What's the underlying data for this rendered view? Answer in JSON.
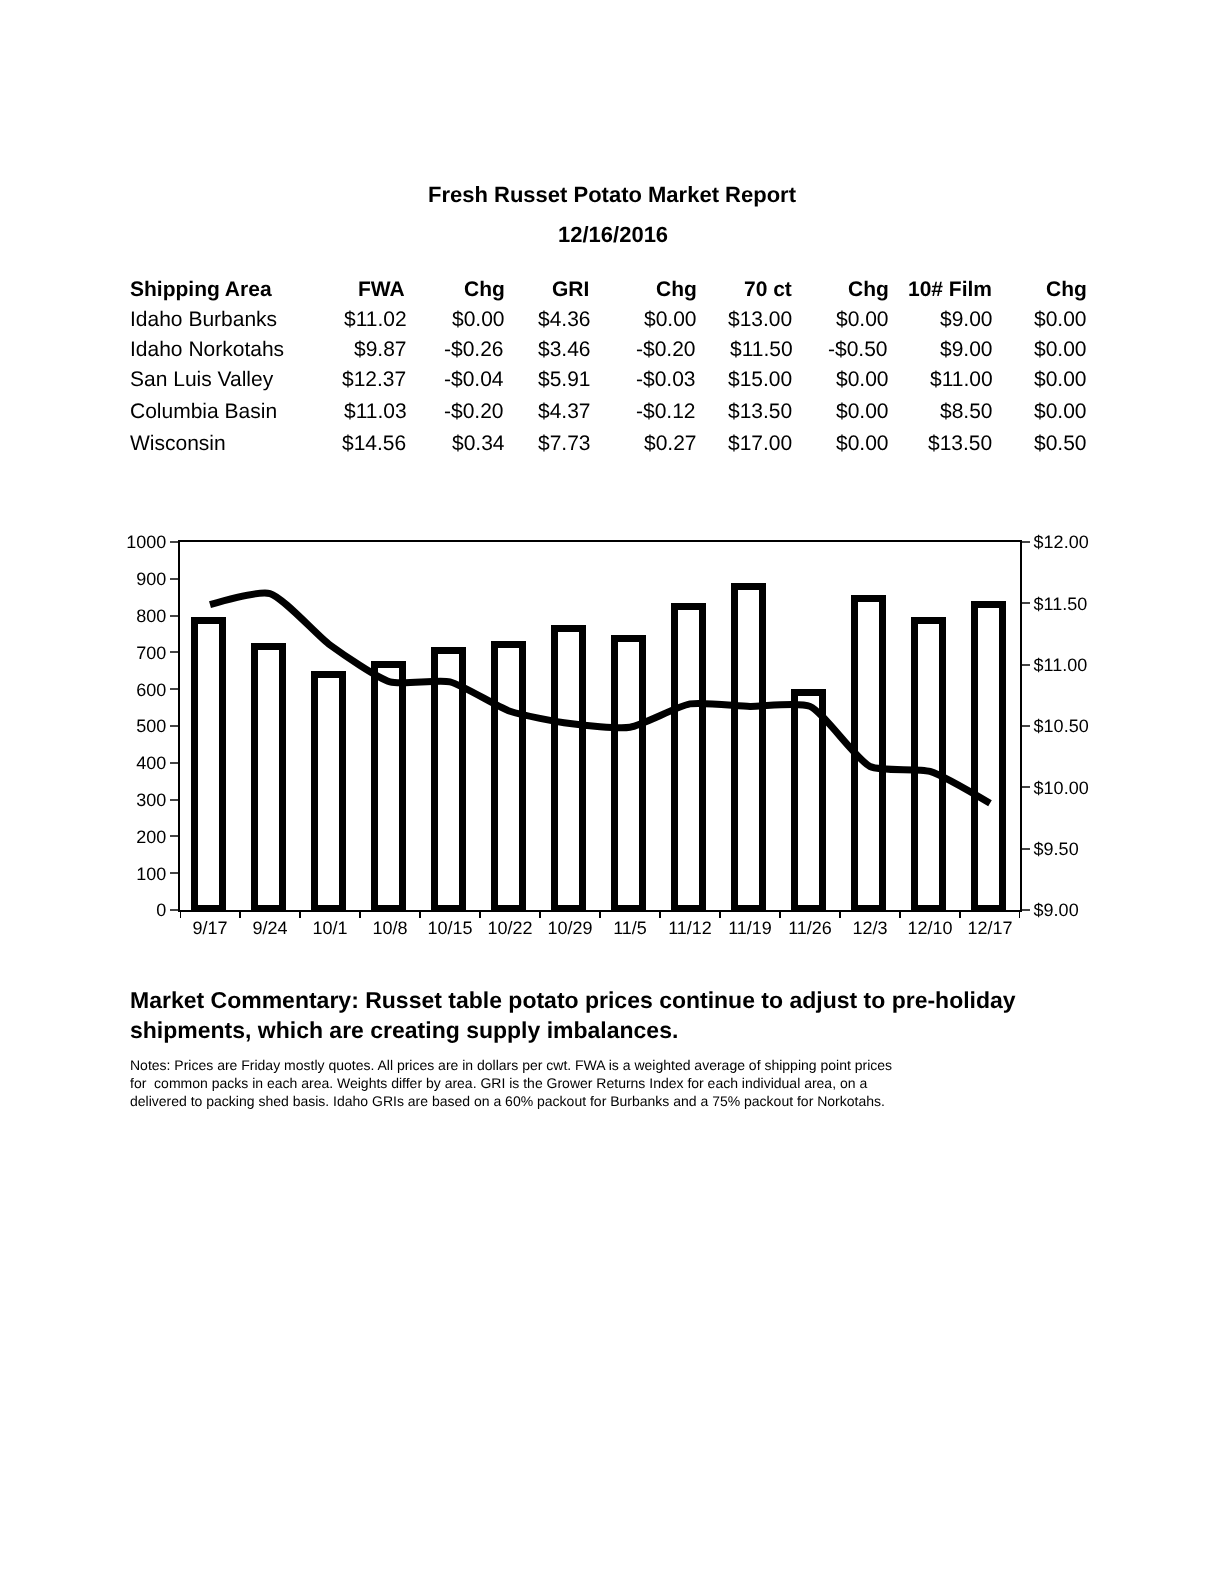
{
  "chart_data": {
    "type": "bar",
    "title": "Fresh Russet Potato Market Report",
    "subtitle": "12/16/2016",
    "categories": [
      "9/17",
      "9/24",
      "10/1",
      "10/8",
      "10/15",
      "10/22",
      "10/29",
      "11/5",
      "11/12",
      "11/19",
      "11/26",
      "12/3",
      "12/10",
      "12/17"
    ],
    "series": [
      {
        "color": "#000000",
        "values": [
          780,
          710,
          635,
          665,
          700,
          715,
          760,
          735,
          820,
          875,
          585,
          845,
          785,
          825
        ]
      },
      {
        "type": "line",
        "axis": "y2",
        "color": "#000000",
        "values": [
          11.49,
          11.58,
          11.16,
          10.86,
          10.86,
          10.62,
          10.52,
          10.49,
          10.68,
          10.66,
          10.66,
          10.17,
          10.13,
          9.87
        ]
      }
    ],
    "ylim": [
      0,
      1000
    ],
    "yticks": [
      0,
      100,
      200,
      300,
      400,
      500,
      600,
      700,
      800,
      900,
      1000
    ],
    "y2lim": [
      9,
      12
    ],
    "y2ticks": [
      {
        "value": 9,
        "label": "$9.00"
      },
      {
        "value": 9.5,
        "label": "$9.50"
      },
      {
        "value": 10,
        "label": "$10.00"
      },
      {
        "value": 10.5,
        "label": "$10.50"
      },
      {
        "value": 11,
        "label": "$11.00"
      },
      {
        "value": 11.5,
        "label": "$11.50"
      },
      {
        "value": 12,
        "label": "$12.00"
      }
    ],
    "grid": false,
    "marker": "none",
    "line_style": "solid",
    "annotations": [
      "Market Commentary: Russet table potato prices continue to adjust to pre-holiday shipments, which are creating supply imbalances.",
      "Notes: Prices are Friday mostly quotes. All prices are in dollars per cwt. FWA is a weighted average of shipping point prices for  common packs in each area. Weights differ by area. GRI is the Grower Returns Index for each individual area, on a delivered to packing shed basis. Idaho GRIs are based on a 60% packout for Burbanks and a 75% packout for Norkotahs.",
      "Shipping Area",
      "FWA",
      "Chg",
      "GRI",
      "Chg",
      "70 ct",
      "Chg",
      "10# Film",
      "Chg",
      "Idaho Burbanks",
      "$11.02",
      "$0.00",
      "$4.36",
      "$0.00",
      "$13.00",
      "$0.00",
      "$9.00",
      "$0.00",
      "Idaho Norkotahs",
      "$9.87",
      "-$0.26",
      "$3.46",
      "-$0.20",
      "$11.50",
      "-$0.50",
      "$9.00",
      "$0.00",
      "San Luis Valley",
      "$12.37",
      "-$0.04",
      "$5.91",
      "-$0.03",
      "$15.00",
      "$0.00",
      "$11.00",
      "$0.00",
      "Columbia Basin",
      "$11.03",
      "-$0.20",
      "$4.37",
      "-$0.12",
      "$13.50",
      "$0.00",
      "$8.50",
      "$0.00",
      "Wisconsin",
      "$14.56",
      "$0.34",
      "$7.73",
      "$0.27",
      "$17.00",
      "$0.00",
      "$13.50",
      "$0.50"
    ]
  }
}
